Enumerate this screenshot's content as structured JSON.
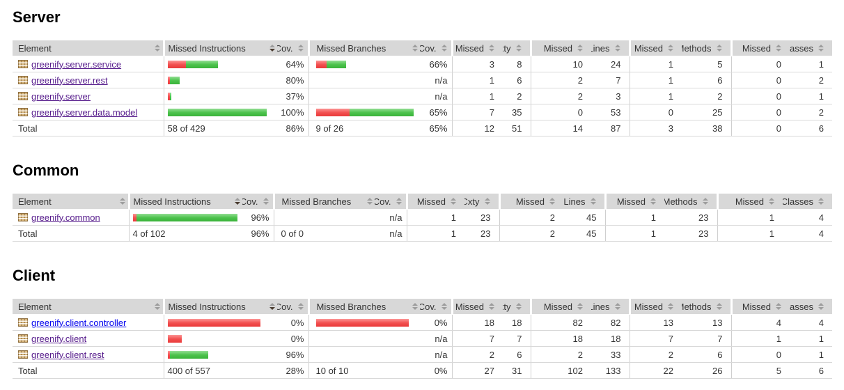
{
  "columns": [
    "Element",
    "Missed Instructions",
    "Cov.",
    "Missed Branches",
    "Cov.",
    "Missed",
    "Cxty",
    "Missed",
    "Lines",
    "Missed",
    "Methods",
    "Missed",
    "Classes"
  ],
  "sort": {
    "sorted_column": "Missed Instructions",
    "direction": "desc"
  },
  "colors": {
    "bar_red": "#f25050",
    "bar_green": "#4cc24c",
    "header_bg": "#d8d8d8",
    "link_visited": "#551A8B",
    "link_new": "#0000EE"
  },
  "sections": [
    {
      "title": "Server",
      "rows": [
        {
          "name": "greenify.server.service",
          "link_state": "visited",
          "ibar": {
            "red": 26,
            "green": 46
          },
          "icov": "64%",
          "bbar": {
            "red": 15,
            "green": 28
          },
          "bcov": "66%",
          "missed_cxty": "3",
          "cxty": "8",
          "missed_lines": "10",
          "lines": "24",
          "missed_methods": "1",
          "methods": "5",
          "missed_classes": "0",
          "classes": "1"
        },
        {
          "name": "greenify.server.rest",
          "link_state": "visited",
          "ibar": {
            "red": 3,
            "green": 14
          },
          "icov": "80%",
          "bbar": null,
          "bcov": "n/a",
          "missed_cxty": "1",
          "cxty": "6",
          "missed_lines": "2",
          "lines": "7",
          "missed_methods": "1",
          "methods": "6",
          "missed_classes": "0",
          "classes": "2"
        },
        {
          "name": "greenify.server",
          "link_state": "visited",
          "ibar": {
            "red": 3,
            "green": 2
          },
          "icov": "37%",
          "bbar": null,
          "bcov": "n/a",
          "missed_cxty": "1",
          "cxty": "2",
          "missed_lines": "2",
          "lines": "3",
          "missed_methods": "1",
          "methods": "2",
          "missed_classes": "0",
          "classes": "1"
        },
        {
          "name": "greenify.server.data.model",
          "link_state": "visited",
          "ibar": {
            "red": 0,
            "green": 142
          },
          "icov": "100%",
          "bbar": {
            "red": 48,
            "green": 92
          },
          "bcov": "65%",
          "missed_cxty": "7",
          "cxty": "35",
          "missed_lines": "0",
          "lines": "53",
          "missed_methods": "0",
          "methods": "25",
          "missed_classes": "0",
          "classes": "2"
        }
      ],
      "total": {
        "label": "Total",
        "instructions": "58 of 429",
        "icov": "86%",
        "branches": "9 of 26",
        "bcov": "65%",
        "missed_cxty": "12",
        "cxty": "51",
        "missed_lines": "14",
        "lines": "87",
        "missed_methods": "3",
        "methods": "38",
        "missed_classes": "0",
        "classes": "6"
      }
    },
    {
      "title": "Common",
      "rows": [
        {
          "name": "greenify.common",
          "link_state": "visited",
          "ibar": {
            "red": 5,
            "green": 145
          },
          "icov": "96%",
          "bbar": null,
          "bcov": "n/a",
          "missed_cxty": "1",
          "cxty": "23",
          "missed_lines": "2",
          "lines": "45",
          "missed_methods": "1",
          "methods": "23",
          "missed_classes": "1",
          "classes": "4"
        }
      ],
      "total": {
        "label": "Total",
        "instructions": "4 of 102",
        "icov": "96%",
        "branches": "0 of 0",
        "bcov": "n/a",
        "missed_cxty": "1",
        "cxty": "23",
        "missed_lines": "2",
        "lines": "45",
        "missed_methods": "1",
        "methods": "23",
        "missed_classes": "1",
        "classes": "4"
      }
    },
    {
      "title": "Client",
      "rows": [
        {
          "name": "greenify.client.controller",
          "link_state": "new",
          "ibar": {
            "red": 133,
            "green": 0
          },
          "icov": "0%",
          "bbar": {
            "red": 133,
            "green": 0
          },
          "bcov": "0%",
          "missed_cxty": "18",
          "cxty": "18",
          "missed_lines": "82",
          "lines": "82",
          "missed_methods": "13",
          "methods": "13",
          "missed_classes": "4",
          "classes": "4"
        },
        {
          "name": "greenify.client",
          "link_state": "visited",
          "ibar": {
            "red": 20,
            "green": 0
          },
          "icov": "0%",
          "bbar": null,
          "bcov": "n/a",
          "missed_cxty": "7",
          "cxty": "7",
          "missed_lines": "18",
          "lines": "18",
          "missed_methods": "7",
          "methods": "7",
          "missed_classes": "1",
          "classes": "1"
        },
        {
          "name": "greenify.client.rest",
          "link_state": "visited",
          "ibar": {
            "red": 3,
            "green": 55
          },
          "icov": "96%",
          "bbar": null,
          "bcov": "n/a",
          "missed_cxty": "2",
          "cxty": "6",
          "missed_lines": "2",
          "lines": "33",
          "missed_methods": "2",
          "methods": "6",
          "missed_classes": "0",
          "classes": "1"
        }
      ],
      "total": {
        "label": "Total",
        "instructions": "400 of 557",
        "icov": "28%",
        "branches": "10 of 10",
        "bcov": "0%",
        "missed_cxty": "27",
        "cxty": "31",
        "missed_lines": "102",
        "lines": "133",
        "missed_methods": "22",
        "methods": "26",
        "missed_classes": "5",
        "classes": "6"
      }
    }
  ]
}
